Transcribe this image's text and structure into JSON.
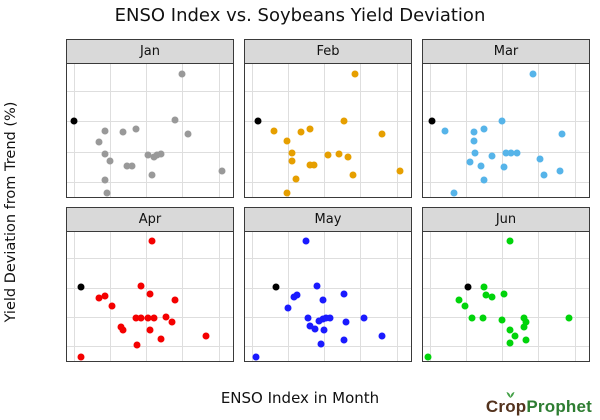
{
  "title": "ENSO Index vs. Soybeans Yield Deviation",
  "axes": {
    "x_label": "ENSO Index in Month",
    "y_label": "Yield Deviation from Trend (%)"
  },
  "branding": {
    "brand_part1": "Cr",
    "brand_o": "o",
    "brand_p": "p",
    "brand_part2": "Prophet",
    "part1_color": "#53321d",
    "part2_color": "#2e7d32",
    "sprout_color": "#43a047"
  },
  "chart_data": {
    "type": "scatter",
    "title": "ENSO Index vs. Soybeans Yield Deviation",
    "xlabel": "ENSO Index in Month",
    "ylabel": "Yield Deviation from Trend (%)",
    "xlim": [
      -2.2,
      2.4
    ],
    "ylim": [
      -15,
      29
    ],
    "x_ticks": [
      -2,
      -1,
      0,
      1,
      2
    ],
    "y_ticks": [
      20,
      10,
      0,
      -10
    ],
    "grid": true,
    "legend": false,
    "highlight_color": "#000000",
    "grid_color": "#dedede",
    "strip_color": "#d9d9d9",
    "facets": [
      {
        "label": "Jan",
        "color": "#999999",
        "highlight": [
          -2.0,
          10.2
        ],
        "points": [
          [
            1.0,
            25.6
          ],
          [
            0.8,
            10.4
          ],
          [
            -1.15,
            7.0
          ],
          [
            -0.65,
            6.5
          ],
          [
            -0.3,
            7.6
          ],
          [
            1.15,
            5.9
          ],
          [
            -1.3,
            3.3
          ],
          [
            -1.15,
            -0.7
          ],
          [
            -1.0,
            -3.0
          ],
          [
            0.05,
            -1.1
          ],
          [
            0.2,
            -1.7
          ],
          [
            0.3,
            -1.1
          ],
          [
            0.4,
            -0.7
          ],
          [
            -0.55,
            -4.7
          ],
          [
            -0.4,
            -4.7
          ],
          [
            0.15,
            -7.6
          ],
          [
            2.1,
            -6.3
          ],
          [
            -1.15,
            -9.3
          ],
          [
            -1.1,
            -13.6
          ]
        ]
      },
      {
        "label": "Feb",
        "color": "#E69F00",
        "highlight": [
          -1.85,
          10.2
        ],
        "points": [
          [
            0.85,
            25.6
          ],
          [
            0.55,
            10.3
          ],
          [
            -1.4,
            6.8
          ],
          [
            -0.65,
            6.4
          ],
          [
            -0.4,
            7.6
          ],
          [
            1.6,
            5.7
          ],
          [
            -1.05,
            3.5
          ],
          [
            -0.9,
            -0.5
          ],
          [
            -0.9,
            -3.2
          ],
          [
            0.1,
            -1.2
          ],
          [
            0.4,
            -0.7
          ],
          [
            0.65,
            -1.9
          ],
          [
            -0.4,
            -4.4
          ],
          [
            -0.3,
            -4.4
          ],
          [
            0.8,
            -7.7
          ],
          [
            2.1,
            -6.3
          ],
          [
            -0.8,
            -9.0
          ],
          [
            -1.05,
            -13.6
          ]
        ]
      },
      {
        "label": "Mar",
        "color": "#56B4E9",
        "highlight": [
          -1.95,
          10.2
        ],
        "points": [
          [
            0.85,
            25.6
          ],
          [
            0.0,
            10.3
          ],
          [
            -1.6,
            6.8
          ],
          [
            -0.8,
            6.4
          ],
          [
            -0.5,
            7.6
          ],
          [
            1.65,
            5.7
          ],
          [
            -0.8,
            3.5
          ],
          [
            -0.75,
            -0.5
          ],
          [
            -0.9,
            -3.3
          ],
          [
            -0.3,
            -1.4
          ],
          [
            0.1,
            -0.5
          ],
          [
            0.25,
            -0.5
          ],
          [
            0.4,
            -0.5
          ],
          [
            -0.6,
            -4.7
          ],
          [
            0.05,
            -5.0
          ],
          [
            1.05,
            -2.3
          ],
          [
            1.15,
            -7.7
          ],
          [
            1.6,
            -6.3
          ],
          [
            -0.5,
            -9.3
          ],
          [
            -1.35,
            -13.6
          ]
        ]
      },
      {
        "label": "Apr",
        "color": "#f40000",
        "highlight": [
          -1.8,
          10.3
        ],
        "points": [
          [
            0.15,
            25.8
          ],
          [
            -0.15,
            10.6
          ],
          [
            0.1,
            7.9
          ],
          [
            -1.3,
            6.5
          ],
          [
            -1.15,
            7.1
          ],
          [
            0.8,
            5.7
          ],
          [
            -0.95,
            3.6
          ],
          [
            -0.3,
            -0.5
          ],
          [
            -0.15,
            -0.5
          ],
          [
            0.05,
            -0.5
          ],
          [
            0.2,
            -0.2
          ],
          [
            0.55,
            0.0
          ],
          [
            0.7,
            -1.6
          ],
          [
            -0.7,
            -3.4
          ],
          [
            -0.65,
            -4.5
          ],
          [
            0.1,
            -4.3
          ],
          [
            0.4,
            -7.6
          ],
          [
            1.65,
            -6.5
          ],
          [
            -0.25,
            -9.4
          ],
          [
            -1.8,
            -13.5
          ]
        ]
      },
      {
        "label": "May",
        "color": "#1a1aff",
        "highlight": [
          -1.35,
          10.3
        ],
        "points": [
          [
            -0.5,
            25.8
          ],
          [
            -0.2,
            10.6
          ],
          [
            0.55,
            7.9
          ],
          [
            -0.75,
            7.4
          ],
          [
            -0.85,
            7.0
          ],
          [
            -0.05,
            5.7
          ],
          [
            -1.0,
            3.2
          ],
          [
            -0.45,
            -0.5
          ],
          [
            -0.15,
            -1.3
          ],
          [
            -0.05,
            -0.7
          ],
          [
            0.05,
            -0.5
          ],
          [
            0.15,
            -0.5
          ],
          [
            1.1,
            -0.2
          ],
          [
            0.6,
            -1.8
          ],
          [
            -0.4,
            -2.9
          ],
          [
            -0.25,
            -4.2
          ],
          [
            0.0,
            -4.5
          ],
          [
            1.6,
            -6.4
          ],
          [
            0.55,
            -7.8
          ],
          [
            -0.1,
            -9.2
          ],
          [
            -1.9,
            -13.5
          ]
        ]
      },
      {
        "label": "Jun",
        "color": "#00d40a",
        "highlight": [
          -0.95,
          10.3
        ],
        "points": [
          [
            0.2,
            25.8
          ],
          [
            -0.5,
            10.3
          ],
          [
            -0.45,
            7.4
          ],
          [
            -0.3,
            7.0
          ],
          [
            0.05,
            7.9
          ],
          [
            -1.2,
            5.7
          ],
          [
            -1.05,
            3.8
          ],
          [
            -0.85,
            -0.5
          ],
          [
            -0.55,
            -0.5
          ],
          [
            0.0,
            -1.1
          ],
          [
            0.6,
            -0.5
          ],
          [
            0.65,
            -1.6
          ],
          [
            1.85,
            -0.5
          ],
          [
            0.2,
            -4.3
          ],
          [
            0.6,
            -3.4
          ],
          [
            0.35,
            -6.4
          ],
          [
            0.65,
            -7.8
          ],
          [
            0.2,
            -8.9
          ],
          [
            -2.05,
            -13.5
          ]
        ]
      }
    ]
  }
}
